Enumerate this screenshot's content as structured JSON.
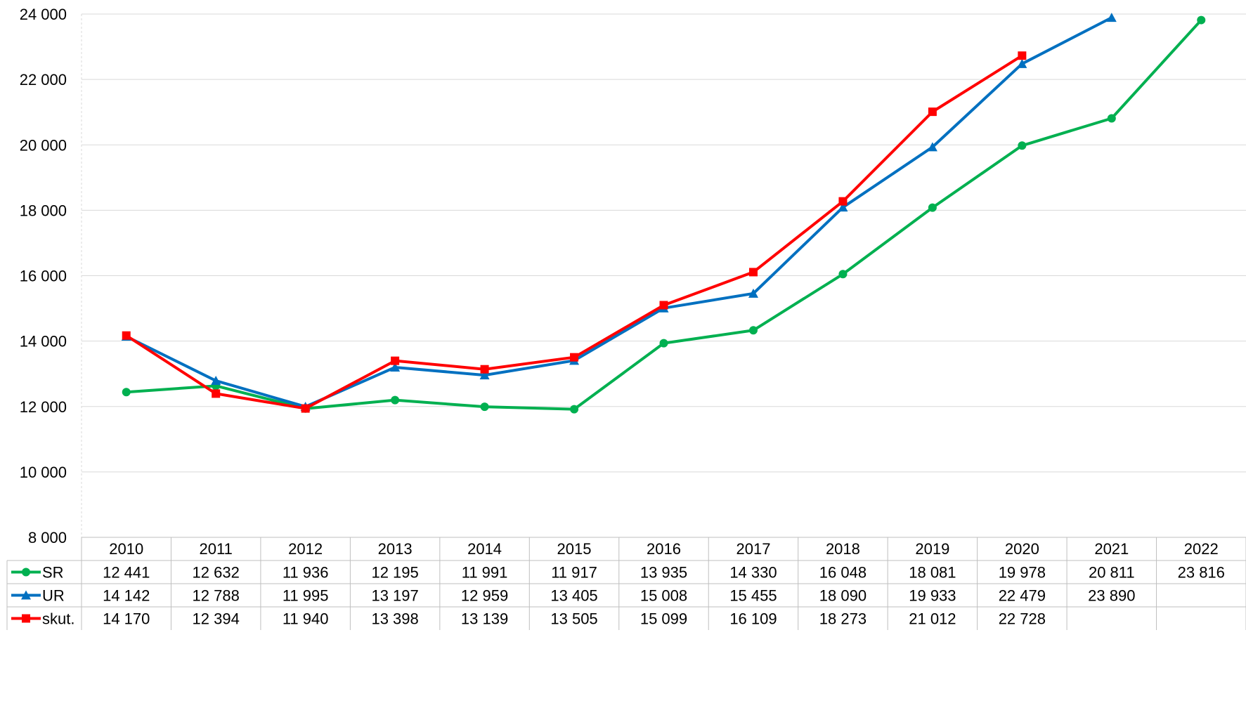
{
  "chart_data": {
    "type": "line",
    "categories": [
      "2010",
      "2011",
      "2012",
      "2013",
      "2014",
      "2015",
      "2016",
      "2017",
      "2018",
      "2019",
      "2020",
      "2021",
      "2022"
    ],
    "ylim": [
      8000,
      24000
    ],
    "y_ticks": [
      8000,
      10000,
      12000,
      14000,
      16000,
      18000,
      20000,
      22000,
      24000
    ],
    "y_tick_labels": [
      "8 000",
      "10 000",
      "12 000",
      "14 000",
      "16 000",
      "18 000",
      "20 000",
      "22 000",
      "24 000"
    ],
    "grid": true,
    "legend": "data-table",
    "series": [
      {
        "name": "SR",
        "color": "#00b050",
        "marker": "circle",
        "values": [
          12441,
          12632,
          11936,
          12195,
          11991,
          11917,
          13935,
          14330,
          16048,
          18081,
          19978,
          20811,
          23816
        ],
        "labels": [
          "12 441",
          "12 632",
          "11 936",
          "12 195",
          "11 991",
          "11 917",
          "13 935",
          "14 330",
          "16 048",
          "18 081",
          "19 978",
          "20 811",
          "23 816"
        ]
      },
      {
        "name": "UR",
        "color": "#0070c0",
        "marker": "triangle",
        "values": [
          14142,
          12788,
          11995,
          13197,
          12959,
          13405,
          15008,
          15455,
          18090,
          19933,
          22479,
          23890,
          null
        ],
        "labels": [
          "14 142",
          "12 788",
          "11 995",
          "13 197",
          "12 959",
          "13 405",
          "15 008",
          "15 455",
          "18 090",
          "19 933",
          "22 479",
          "23 890",
          ""
        ]
      },
      {
        "name": "skut.",
        "color": "#ff0000",
        "marker": "square",
        "values": [
          14170,
          12394,
          11940,
          13398,
          13139,
          13505,
          15099,
          16109,
          18273,
          21012,
          22728,
          null,
          null
        ],
        "labels": [
          "14 170",
          "12 394",
          "11 940",
          "13 398",
          "13 139",
          "13 505",
          "15 099",
          "16 109",
          "18 273",
          "21 012",
          "22 728",
          "",
          ""
        ]
      }
    ]
  }
}
